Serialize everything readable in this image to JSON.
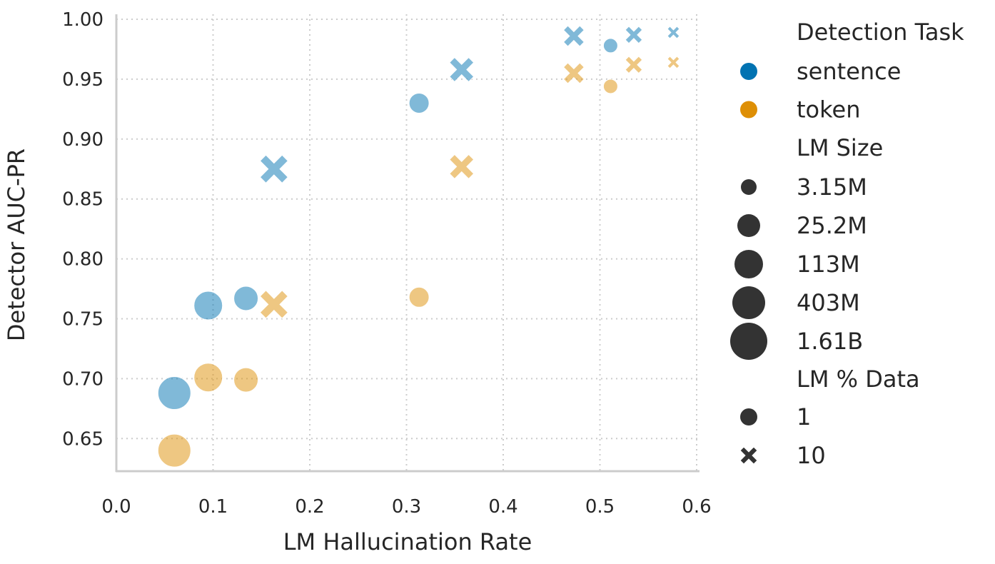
{
  "chart_data": {
    "type": "scatter",
    "xlabel": "LM Hallucination Rate",
    "ylabel": "Detector AUC-PR",
    "xlim": [
      0.0,
      0.6
    ],
    "ylim": [
      0.625,
      1.0
    ],
    "xticks": [
      "0.0",
      "0.1",
      "0.2",
      "0.3",
      "0.4",
      "0.5",
      "0.6"
    ],
    "yticks": [
      "0.65",
      "0.70",
      "0.75",
      "0.80",
      "0.85",
      "0.90",
      "0.95",
      "1.00"
    ],
    "grid": true,
    "legend_placement": "right, outside",
    "colors": {
      "sentence": "#0173b2",
      "token": "#de8f05",
      "legend_marker": "#333333"
    },
    "legend": {
      "hue_title": "Detection Task",
      "hue": [
        "sentence",
        "token"
      ],
      "size_title": "LM Size",
      "sizes": [
        "3.15M",
        "25.2M",
        "113M",
        "403M",
        "1.61B"
      ],
      "style_title": "LM % Data",
      "styles": [
        {
          "label": "1",
          "marker": "circle"
        },
        {
          "label": "10",
          "marker": "cross"
        }
      ]
    },
    "series": [
      {
        "name": "sentence",
        "points": [
          {
            "x": 0.06,
            "y": 0.688,
            "size": "1.61B",
            "data": "1"
          },
          {
            "x": 0.095,
            "y": 0.761,
            "size": "403M",
            "data": "1"
          },
          {
            "x": 0.134,
            "y": 0.767,
            "size": "113M",
            "data": "1"
          },
          {
            "x": 0.163,
            "y": 0.875,
            "size": "1.61B",
            "data": "10"
          },
          {
            "x": 0.313,
            "y": 0.93,
            "size": "25.2M",
            "data": "1"
          },
          {
            "x": 0.357,
            "y": 0.958,
            "size": "403M",
            "data": "10"
          },
          {
            "x": 0.473,
            "y": 0.986,
            "size": "113M",
            "data": "10"
          },
          {
            "x": 0.511,
            "y": 0.978,
            "size": "3.15M",
            "data": "1"
          },
          {
            "x": 0.535,
            "y": 0.987,
            "size": "25.2M",
            "data": "10"
          },
          {
            "x": 0.576,
            "y": 0.989,
            "size": "3.15M",
            "data": "10"
          }
        ]
      },
      {
        "name": "token",
        "points": [
          {
            "x": 0.06,
            "y": 0.64,
            "size": "1.61B",
            "data": "1"
          },
          {
            "x": 0.095,
            "y": 0.701,
            "size": "403M",
            "data": "1"
          },
          {
            "x": 0.134,
            "y": 0.699,
            "size": "113M",
            "data": "1"
          },
          {
            "x": 0.163,
            "y": 0.762,
            "size": "1.61B",
            "data": "10"
          },
          {
            "x": 0.313,
            "y": 0.768,
            "size": "25.2M",
            "data": "1"
          },
          {
            "x": 0.357,
            "y": 0.877,
            "size": "403M",
            "data": "10"
          },
          {
            "x": 0.473,
            "y": 0.955,
            "size": "113M",
            "data": "10"
          },
          {
            "x": 0.511,
            "y": 0.944,
            "size": "3.15M",
            "data": "1"
          },
          {
            "x": 0.535,
            "y": 0.962,
            "size": "25.2M",
            "data": "10"
          },
          {
            "x": 0.576,
            "y": 0.964,
            "size": "3.15M",
            "data": "10"
          }
        ]
      }
    ]
  }
}
